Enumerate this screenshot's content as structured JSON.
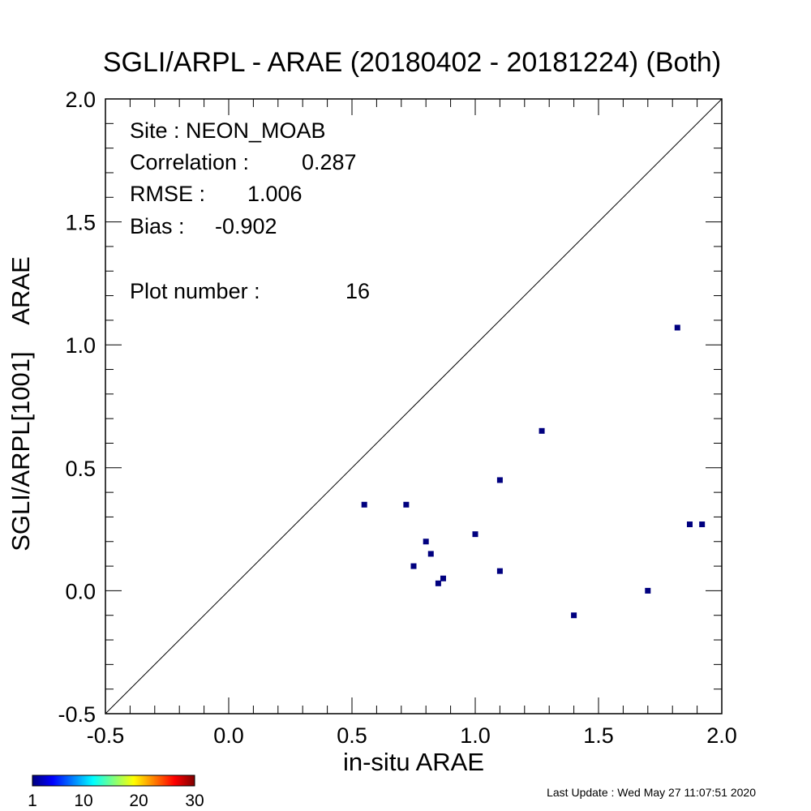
{
  "chart_data": {
    "type": "scatter",
    "title": "SGLI/ARPL - ARAE (20180402 - 20181224) (Both)",
    "xlabel": "in-situ ARAE",
    "ylabel": "SGLI/ARPL[1001]    ARAE",
    "xlim": [
      -0.5,
      2.0
    ],
    "ylim": [
      -0.5,
      2.0
    ],
    "x_ticks": [
      "-0.5",
      "0.0",
      "0.5",
      "1.0",
      "1.5",
      "2.0"
    ],
    "y_ticks": [
      "-0.5",
      "0.0",
      "0.5",
      "1.0",
      "1.5",
      "2.0"
    ],
    "one_to_one_line": true,
    "point_color": "#00007f",
    "points": [
      {
        "x": 0.55,
        "y": 0.35
      },
      {
        "x": 0.72,
        "y": 0.35
      },
      {
        "x": 0.75,
        "y": 0.1
      },
      {
        "x": 0.8,
        "y": 0.2
      },
      {
        "x": 0.82,
        "y": 0.15
      },
      {
        "x": 0.85,
        "y": 0.03
      },
      {
        "x": 0.87,
        "y": 0.05
      },
      {
        "x": 1.0,
        "y": 0.23
      },
      {
        "x": 1.1,
        "y": 0.45
      },
      {
        "x": 1.1,
        "y": 0.08
      },
      {
        "x": 1.27,
        "y": 0.65
      },
      {
        "x": 1.4,
        "y": -0.1
      },
      {
        "x": 1.7,
        "y": 0.0
      },
      {
        "x": 1.82,
        "y": 1.07
      },
      {
        "x": 1.87,
        "y": 0.27
      },
      {
        "x": 1.92,
        "y": 0.27
      }
    ],
    "stats": {
      "site_label": "Site : NEON_MOAB",
      "correlation_label": "Correlation :",
      "correlation_value": "0.287",
      "rmse_label": "RMSE :",
      "rmse_value": "1.006",
      "bias_label": "Bias :",
      "bias_value": "-0.902",
      "plot_number_label": "Plot number :",
      "plot_number_value": "16"
    },
    "colorbar": {
      "tick_labels": [
        "1",
        "10",
        "20",
        "30"
      ],
      "colors": [
        "#00007f",
        "#0000ff",
        "#007fff",
        "#00ffff",
        "#7fff7f",
        "#ffff00",
        "#ff7f00",
        "#ff0000",
        "#7f0000"
      ]
    }
  },
  "footer": {
    "last_update": "Last Update : Wed May 27 11:07:51 2020"
  }
}
